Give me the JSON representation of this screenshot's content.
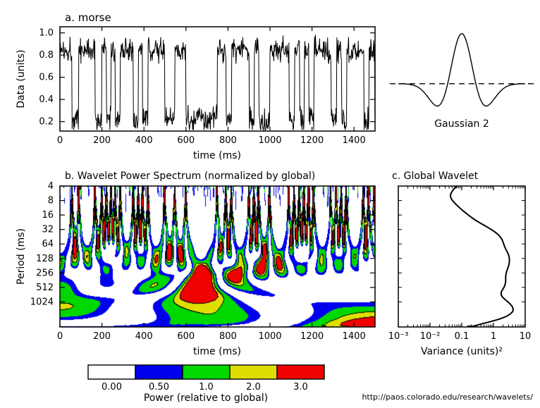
{
  "page": {
    "footer_url": "http://paos.colorado.edu/research/wavelets/",
    "background": "#ffffff"
  },
  "chart_data": [
    {
      "id": "timeseries",
      "panel": "a",
      "type": "line",
      "title": "a. morse",
      "xlabel": "time (ms)",
      "ylabel": "Data (units)",
      "xlim": [
        0,
        1500
      ],
      "ylim": [
        0.115,
        1.055
      ],
      "xticks": [
        0,
        200,
        400,
        600,
        800,
        1000,
        1200,
        1400
      ],
      "yticks": [
        0.2,
        0.4,
        0.6,
        0.8,
        1.0
      ],
      "signal": {
        "kind": "binary telegraph (morse-code) signal with additive noise; high between segment bounds [start_ms,end_ms], low elsewhere",
        "high_level": 0.85,
        "low_level": 0.22,
        "noise_amp": 0.07,
        "noise_seed": 1337,
        "dt_ms": 2,
        "clip": [
          0.125,
          1.0
        ],
        "high_segments": [
          [
            0,
            58
          ],
          [
            90,
            168
          ],
          [
            200,
            222
          ],
          [
            244,
            264
          ],
          [
            288,
            350
          ],
          [
            374,
            394
          ],
          [
            420,
            500
          ],
          [
            548,
            600
          ],
          [
            750,
            792
          ],
          [
            818,
            902
          ],
          [
            926,
            948
          ],
          [
            1000,
            1092
          ],
          [
            1118,
            1142
          ],
          [
            1164,
            1186
          ],
          [
            1210,
            1292
          ],
          [
            1318,
            1342
          ],
          [
            1366,
            1448
          ],
          [
            1472,
            1500
          ]
        ]
      }
    },
    {
      "id": "mother-wavelet",
      "panel": "top-right",
      "type": "line",
      "title": "Gaussian 2",
      "function": "DOG2 / mexican hat: (1 - t^2) * exp(-t^2 / 2)",
      "t_range": [
        -4.5,
        4.5
      ],
      "zero_line_style": "dashed"
    },
    {
      "id": "wavelet-power",
      "panel": "b",
      "type": "heatmap",
      "title": "b. Wavelet Power Spectrum (normalized by global)",
      "xlabel": "time (ms)",
      "ylabel": "Period (ms)",
      "xlim": [
        0,
        1500
      ],
      "period_range": [
        4,
        3400
      ],
      "xticks": [
        0,
        200,
        400,
        600,
        800,
        1000,
        1200,
        1400
      ],
      "period_ticks": [
        4,
        8,
        16,
        32,
        64,
        128,
        256,
        512,
        1024
      ],
      "levels": [
        0,
        0.5,
        1,
        2,
        3
      ],
      "level_colors": [
        "#ffffff",
        "#0000f0",
        "#00d800",
        "#dede00",
        "#f00000"
      ],
      "scales_per_octave": 6,
      "wavelet": "Gaussian 2 (DOG m=2)",
      "normalization": "wavelet power divided by global wavelet spectrum at each period"
    },
    {
      "id": "global-wavelet",
      "panel": "c",
      "type": "line",
      "title": "c. Global Wavelet",
      "xlabel": "Variance (units)²",
      "x_scale": "log",
      "xlim": [
        0.001,
        10
      ],
      "xticks": [
        0.001,
        0.01,
        0.1,
        1,
        10
      ],
      "xtick_labels": [
        "10⁻³",
        "10⁻²",
        "0.1",
        "1",
        "10"
      ],
      "peak_variance": 4.2
    }
  ],
  "colorbar": {
    "title": "Power (relative to global)",
    "tick_labels": [
      "0.00",
      "0.50",
      "1.0",
      "2.0",
      "3.0"
    ],
    "colors": [
      "#ffffff",
      "#0000f0",
      "#00d800",
      "#dede00",
      "#f00000"
    ]
  }
}
